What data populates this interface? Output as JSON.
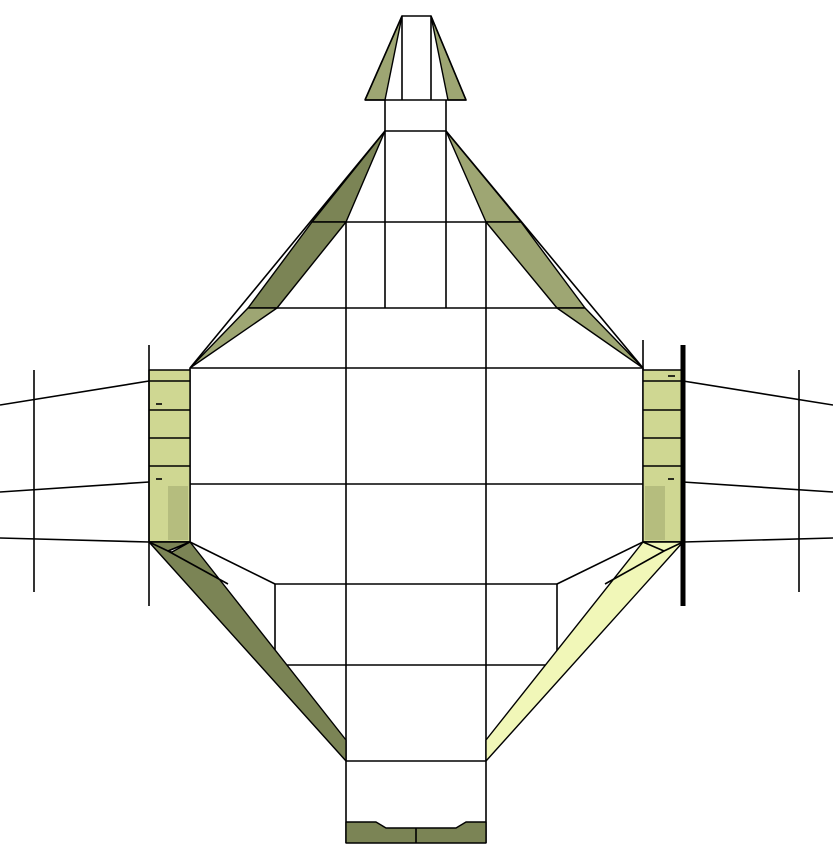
{
  "diagram": {
    "type": "wireframe-top-view",
    "colors": {
      "background": "#ffffff",
      "line": "#000000",
      "face_dark": "#7b8455",
      "face_mid": "#9ea673",
      "face_light": "#cfd792",
      "face_pale": "#f1f7b8"
    }
  }
}
